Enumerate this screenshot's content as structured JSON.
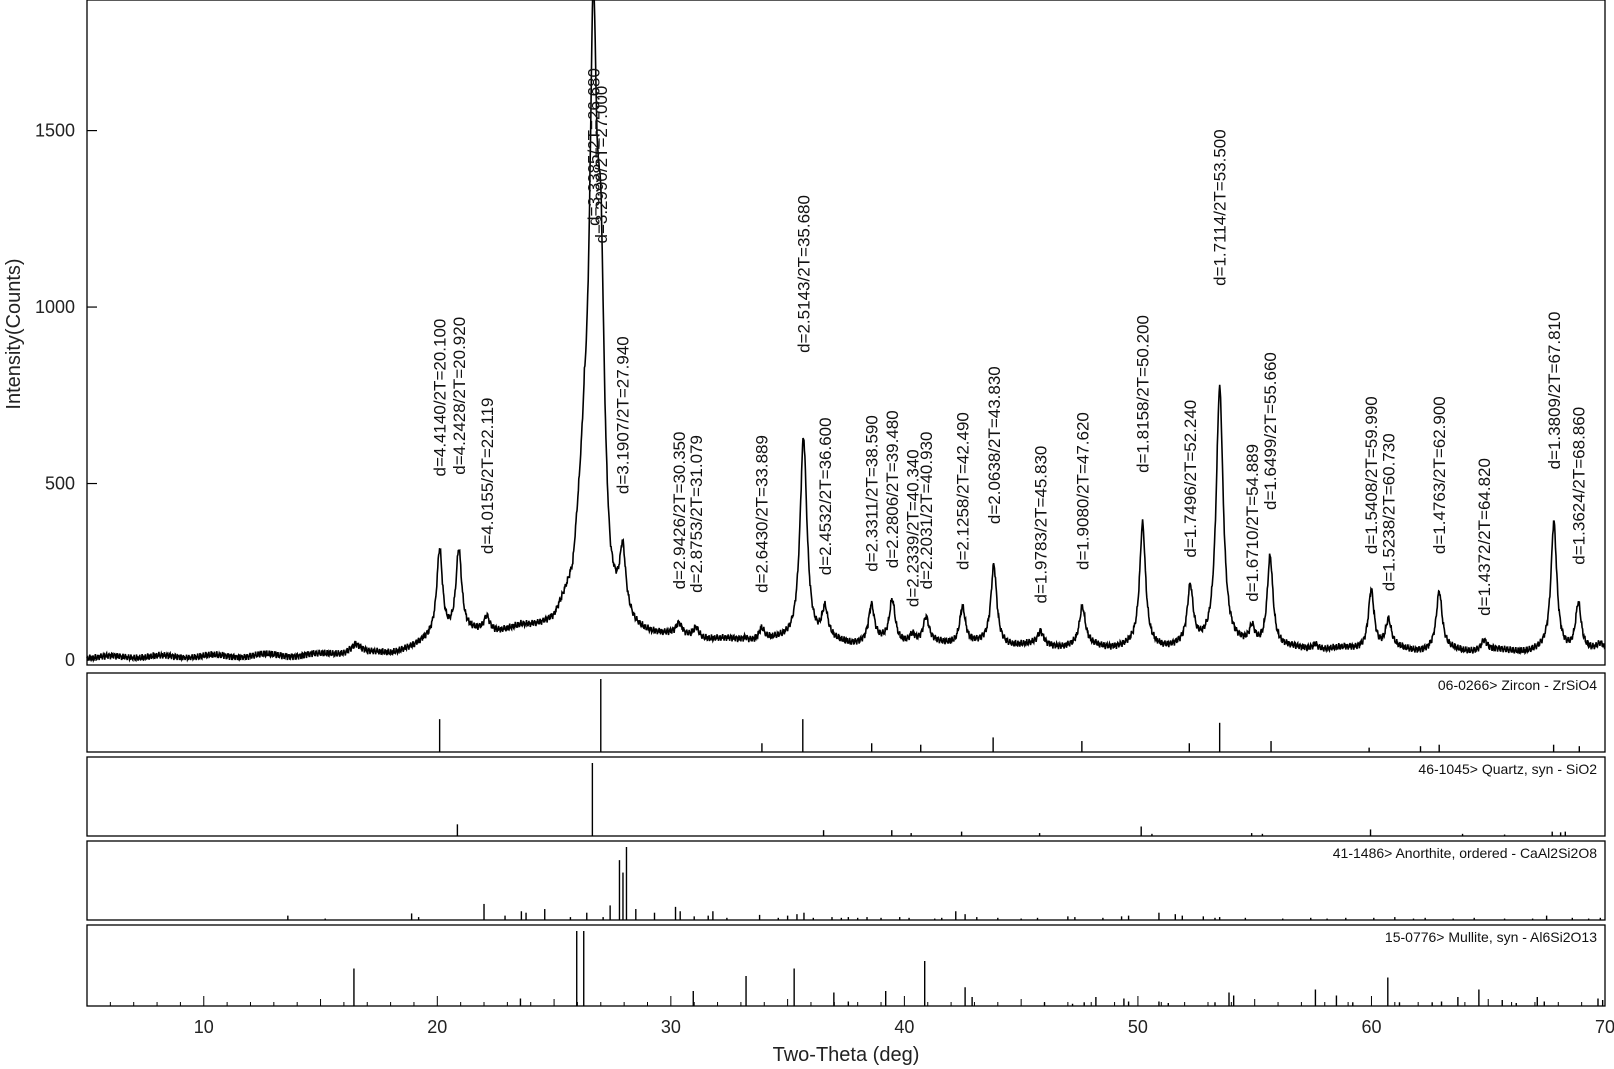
{
  "chart_data": {
    "type": "line",
    "xlabel": "Two-Theta (deg)",
    "ylabel": "Intensity(Counts)",
    "xlim": [
      5,
      70
    ],
    "ylim": [
      0,
      1870
    ],
    "x_ticks": [
      "10",
      "20",
      "30",
      "40",
      "50",
      "60",
      "70"
    ],
    "y_ticks": [
      "0",
      "500",
      "1000",
      "1500"
    ],
    "pattern": {
      "baseline": [
        [
          5,
          8
        ],
        [
          10,
          10
        ],
        [
          15,
          14
        ],
        [
          16,
          22
        ],
        [
          16.5,
          40
        ],
        [
          17,
          20
        ],
        [
          18,
          22
        ],
        [
          19,
          35
        ],
        [
          19.8,
          60
        ],
        [
          21,
          70
        ],
        [
          22.5,
          80
        ],
        [
          24,
          90
        ],
        [
          25,
          110
        ],
        [
          25.8,
          200
        ],
        [
          26.3,
          520
        ],
        [
          27.4,
          130
        ],
        [
          28.5,
          80
        ],
        [
          30,
          65
        ],
        [
          32,
          55
        ],
        [
          34,
          50
        ],
        [
          36,
          45
        ],
        [
          40,
          45
        ],
        [
          45,
          40
        ],
        [
          50,
          35
        ],
        [
          55,
          30
        ],
        [
          60,
          28
        ],
        [
          65,
          25
        ],
        [
          70,
          22
        ]
      ],
      "peaks": [
        {
          "x": 16.5,
          "y": 45
        },
        {
          "x": 20.1,
          "y": 310
        },
        {
          "x": 20.92,
          "y": 305
        },
        {
          "x": 22.119,
          "y": 120
        },
        {
          "x": 23.6,
          "y": 90
        },
        {
          "x": 24.5,
          "y": 95
        },
        {
          "x": 26.68,
          "y": 1740
        },
        {
          "x": 27.0,
          "y": 1010
        },
        {
          "x": 27.94,
          "y": 280
        },
        {
          "x": 30.35,
          "y": 95
        },
        {
          "x": 31.079,
          "y": 90
        },
        {
          "x": 33.2,
          "y": 60
        },
        {
          "x": 33.889,
          "y": 85
        },
        {
          "x": 35.68,
          "y": 630
        },
        {
          "x": 36.6,
          "y": 130
        },
        {
          "x": 38.59,
          "y": 150
        },
        {
          "x": 39.48,
          "y": 165
        },
        {
          "x": 40.34,
          "y": 70
        },
        {
          "x": 40.93,
          "y": 115
        },
        {
          "x": 42.49,
          "y": 150
        },
        {
          "x": 43.83,
          "y": 265
        },
        {
          "x": 45.83,
          "y": 75
        },
        {
          "x": 47.62,
          "y": 145
        },
        {
          "x": 50.2,
          "y": 380
        },
        {
          "x": 52.24,
          "y": 195
        },
        {
          "x": 53.5,
          "y": 770
        },
        {
          "x": 54.889,
          "y": 80
        },
        {
          "x": 55.66,
          "y": 290
        },
        {
          "x": 57.6,
          "y": 45
        },
        {
          "x": 59.99,
          "y": 200
        },
        {
          "x": 60.73,
          "y": 105
        },
        {
          "x": 62.9,
          "y": 190
        },
        {
          "x": 64.82,
          "y": 55
        },
        {
          "x": 67.81,
          "y": 385
        },
        {
          "x": 68.86,
          "y": 160
        },
        {
          "x": 69.8,
          "y": 40
        }
      ]
    },
    "peak_labels": [
      {
        "text": "d=4.4140/2T=20.100",
        "x": 20.1,
        "top": 520
      },
      {
        "text": "d=4.2428/2T=20.920",
        "x": 20.92,
        "top": 525
      },
      {
        "text": "d=4.0155/2T=22.119",
        "x": 22.119,
        "top": 300
      },
      {
        "text": "d=3.3385/2T=26.680",
        "x": 26.68,
        "top": 1230
      },
      {
        "text": "d=3.2990/2T=27.000",
        "x": 27.0,
        "top": 1180
      },
      {
        "text": "d=3.1907/2T=27.940",
        "x": 27.94,
        "top": 470
      },
      {
        "text": "d=2.9426/2T=30.350",
        "x": 30.35,
        "top": 200
      },
      {
        "text": "d=2.8753/2T=31.079",
        "x": 31.079,
        "top": 190
      },
      {
        "text": "d=2.6430/2T=33.889",
        "x": 33.889,
        "top": 190
      },
      {
        "text": "d=2.5143/2T=35.680",
        "x": 35.68,
        "top": 870
      },
      {
        "text": "d=2.4532/2T=36.600",
        "x": 36.6,
        "top": 240
      },
      {
        "text": "d=2.3311/2T=38.590",
        "x": 38.59,
        "top": 250
      },
      {
        "text": "d=2.2806/2T=39.480",
        "x": 39.48,
        "top": 260
      },
      {
        "text": "d=2.2339/2T=40.340",
        "x": 40.34,
        "top": 150
      },
      {
        "text": "d=2.2031/2T=40.930",
        "x": 40.93,
        "top": 200
      },
      {
        "text": "d=2.1258/2T=42.490",
        "x": 42.49,
        "top": 255
      },
      {
        "text": "d=2.0638/2T=43.830",
        "x": 43.83,
        "top": 385
      },
      {
        "text": "d=1.9783/2T=45.830",
        "x": 45.83,
        "top": 160
      },
      {
        "text": "d=1.9080/2T=47.620",
        "x": 47.62,
        "top": 255
      },
      {
        "text": "d=1.8158/2T=50.200",
        "x": 50.2,
        "top": 530
      },
      {
        "text": "d=1.7496/2T=52.240",
        "x": 52.24,
        "top": 290
      },
      {
        "text": "d=1.7114/2T=53.500",
        "x": 53.5,
        "top": 1060
      },
      {
        "text": "d=1.6710/2T=54.889",
        "x": 54.889,
        "top": 165
      },
      {
        "text": "d=1.6499/2T=55.660",
        "x": 55.66,
        "top": 425
      },
      {
        "text": "d=1.5408/2T=59.990",
        "x": 59.99,
        "top": 300
      },
      {
        "text": "d=1.5238/2T=60.730",
        "x": 60.73,
        "top": 195
      },
      {
        "text": "d=1.4763/2T=62.900",
        "x": 62.9,
        "top": 300
      },
      {
        "text": "d=1.4372/2T=64.820",
        "x": 64.82,
        "top": 125
      },
      {
        "text": "d=1.3809/2T=67.810",
        "x": 67.81,
        "top": 540
      },
      {
        "text": "d=1.3624/2T=68.860",
        "x": 68.86,
        "top": 270
      }
    ],
    "reference_panels": [
      {
        "label": "06-0266> Zircon - ZrSiO4",
        "sticks": [
          {
            "x": 20.1,
            "h": 45
          },
          {
            "x": 27.0,
            "h": 100
          },
          {
            "x": 33.9,
            "h": 12
          },
          {
            "x": 35.65,
            "h": 45
          },
          {
            "x": 38.6,
            "h": 12
          },
          {
            "x": 40.7,
            "h": 10
          },
          {
            "x": 43.8,
            "h": 20
          },
          {
            "x": 47.6,
            "h": 15
          },
          {
            "x": 52.2,
            "h": 12
          },
          {
            "x": 53.5,
            "h": 40
          },
          {
            "x": 55.7,
            "h": 15
          },
          {
            "x": 59.9,
            "h": 6
          },
          {
            "x": 62.1,
            "h": 8
          },
          {
            "x": 62.9,
            "h": 10
          },
          {
            "x": 67.8,
            "h": 10
          },
          {
            "x": 68.9,
            "h": 8
          }
        ]
      },
      {
        "label": "46-1045> Quartz, syn - SiO2",
        "sticks": [
          {
            "x": 20.86,
            "h": 16
          },
          {
            "x": 26.64,
            "h": 100
          },
          {
            "x": 36.54,
            "h": 8
          },
          {
            "x": 39.46,
            "h": 8
          },
          {
            "x": 40.29,
            "h": 4
          },
          {
            "x": 42.45,
            "h": 6
          },
          {
            "x": 45.79,
            "h": 4
          },
          {
            "x": 50.14,
            "h": 13
          },
          {
            "x": 50.6,
            "h": 3
          },
          {
            "x": 54.87,
            "h": 4
          },
          {
            "x": 55.33,
            "h": 3
          },
          {
            "x": 59.96,
            "h": 9
          },
          {
            "x": 63.9,
            "h": 3
          },
          {
            "x": 65.7,
            "h": 2
          },
          {
            "x": 67.74,
            "h": 6
          },
          {
            "x": 68.1,
            "h": 5
          },
          {
            "x": 68.3,
            "h": 6
          }
        ]
      },
      {
        "label": "41-1486> Anorthite, ordered - CaAl2Si2O8",
        "sticks": [
          {
            "x": 13.6,
            "h": 6
          },
          {
            "x": 15.2,
            "h": 2
          },
          {
            "x": 18.9,
            "h": 9
          },
          {
            "x": 19.2,
            "h": 4
          },
          {
            "x": 22.0,
            "h": 22
          },
          {
            "x": 22.9,
            "h": 6
          },
          {
            "x": 23.6,
            "h": 12
          },
          {
            "x": 23.8,
            "h": 10
          },
          {
            "x": 24.6,
            "h": 15
          },
          {
            "x": 25.7,
            "h": 4
          },
          {
            "x": 26.4,
            "h": 10
          },
          {
            "x": 27.1,
            "h": 4
          },
          {
            "x": 27.4,
            "h": 20
          },
          {
            "x": 27.8,
            "h": 82
          },
          {
            "x": 27.95,
            "h": 65
          },
          {
            "x": 28.1,
            "h": 100
          },
          {
            "x": 28.5,
            "h": 15
          },
          {
            "x": 29.3,
            "h": 10
          },
          {
            "x": 30.2,
            "h": 18
          },
          {
            "x": 30.4,
            "h": 12
          },
          {
            "x": 31.0,
            "h": 5
          },
          {
            "x": 31.6,
            "h": 6
          },
          {
            "x": 31.8,
            "h": 12
          },
          {
            "x": 32.4,
            "h": 3
          },
          {
            "x": 33.8,
            "h": 7
          },
          {
            "x": 34.6,
            "h": 3
          },
          {
            "x": 35.0,
            "h": 6
          },
          {
            "x": 35.4,
            "h": 8
          },
          {
            "x": 35.7,
            "h": 10
          },
          {
            "x": 36.1,
            "h": 3
          },
          {
            "x": 36.9,
            "h": 4
          },
          {
            "x": 37.3,
            "h": 3
          },
          {
            "x": 37.6,
            "h": 4
          },
          {
            "x": 38.0,
            "h": 3
          },
          {
            "x": 38.4,
            "h": 4
          },
          {
            "x": 39.0,
            "h": 3
          },
          {
            "x": 39.8,
            "h": 4
          },
          {
            "x": 40.2,
            "h": 3
          },
          {
            "x": 41.3,
            "h": 2
          },
          {
            "x": 41.6,
            "h": 3
          },
          {
            "x": 42.2,
            "h": 12
          },
          {
            "x": 42.6,
            "h": 8
          },
          {
            "x": 43.1,
            "h": 4
          },
          {
            "x": 44.0,
            "h": 3
          },
          {
            "x": 45.0,
            "h": 2
          },
          {
            "x": 45.7,
            "h": 3
          },
          {
            "x": 47.0,
            "h": 5
          },
          {
            "x": 47.3,
            "h": 4
          },
          {
            "x": 48.5,
            "h": 3
          },
          {
            "x": 49.3,
            "h": 5
          },
          {
            "x": 49.6,
            "h": 6
          },
          {
            "x": 50.9,
            "h": 10
          },
          {
            "x": 51.6,
            "h": 8
          },
          {
            "x": 51.9,
            "h": 6
          },
          {
            "x": 52.8,
            "h": 5
          },
          {
            "x": 53.3,
            "h": 3
          },
          {
            "x": 53.5,
            "h": 4
          },
          {
            "x": 54.6,
            "h": 3
          },
          {
            "x": 56.2,
            "h": 2
          },
          {
            "x": 57.4,
            "h": 3
          },
          {
            "x": 58.1,
            "h": 2
          },
          {
            "x": 58.9,
            "h": 3
          },
          {
            "x": 60.1,
            "h": 3
          },
          {
            "x": 61.0,
            "h": 4
          },
          {
            "x": 61.8,
            "h": 2
          },
          {
            "x": 62.3,
            "h": 3
          },
          {
            "x": 63.5,
            "h": 2
          },
          {
            "x": 64.4,
            "h": 3
          },
          {
            "x": 65.7,
            "h": 2
          },
          {
            "x": 66.9,
            "h": 2
          },
          {
            "x": 67.5,
            "h": 6
          },
          {
            "x": 68.6,
            "h": 3
          },
          {
            "x": 69.3,
            "h": 2
          },
          {
            "x": 69.8,
            "h": 3
          }
        ]
      },
      {
        "label": "15-0776> Mullite, syn - Al6Si2O13",
        "sticks": [
          {
            "x": 16.43,
            "h": 50
          },
          {
            "x": 23.56,
            "h": 10
          },
          {
            "x": 25.97,
            "h": 100
          },
          {
            "x": 26.27,
            "h": 100
          },
          {
            "x": 30.96,
            "h": 20
          },
          {
            "x": 33.22,
            "h": 40
          },
          {
            "x": 35.28,
            "h": 50
          },
          {
            "x": 36.98,
            "h": 18
          },
          {
            "x": 37.6,
            "h": 6
          },
          {
            "x": 39.2,
            "h": 20
          },
          {
            "x": 40.87,
            "h": 60
          },
          {
            "x": 42.6,
            "h": 25
          },
          {
            "x": 42.9,
            "h": 12
          },
          {
            "x": 46.0,
            "h": 5
          },
          {
            "x": 47.2,
            "h": 3
          },
          {
            "x": 47.7,
            "h": 5
          },
          {
            "x": 48.2,
            "h": 12
          },
          {
            "x": 49.4,
            "h": 10
          },
          {
            "x": 49.6,
            "h": 6
          },
          {
            "x": 50.9,
            "h": 6
          },
          {
            "x": 51.3,
            "h": 4
          },
          {
            "x": 53.3,
            "h": 5
          },
          {
            "x": 53.9,
            "h": 18
          },
          {
            "x": 54.1,
            "h": 14
          },
          {
            "x": 57.6,
            "h": 22
          },
          {
            "x": 58.5,
            "h": 14
          },
          {
            "x": 59.2,
            "h": 5
          },
          {
            "x": 60.7,
            "h": 38
          },
          {
            "x": 61.2,
            "h": 5
          },
          {
            "x": 62.6,
            "h": 5
          },
          {
            "x": 63.0,
            "h": 6
          },
          {
            "x": 63.7,
            "h": 12
          },
          {
            "x": 64.6,
            "h": 22
          },
          {
            "x": 65.6,
            "h": 8
          },
          {
            "x": 66.2,
            "h": 4
          },
          {
            "x": 67.1,
            "h": 12
          },
          {
            "x": 67.4,
            "h": 6
          },
          {
            "x": 69.7,
            "h": 10
          },
          {
            "x": 69.9,
            "h": 8
          }
        ]
      }
    ]
  }
}
